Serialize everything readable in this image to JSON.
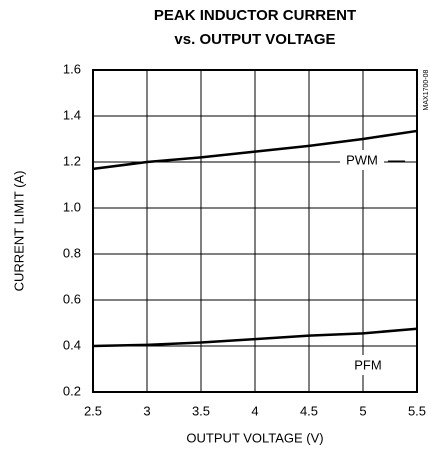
{
  "chart_data": {
    "type": "line",
    "title": "PEAK INDUCTOR CURRENT",
    "subtitle": "vs. OUTPUT VOLTAGE",
    "x_label": "OUTPUT VOLTAGE (V)",
    "y_label": "CURRENT LIMIT (A)",
    "annotation": "MAX1700-08",
    "x": [
      2.5,
      3,
      3.5,
      4,
      4.5,
      5,
      5.5
    ],
    "series": [
      {
        "name": "PWM",
        "color": "#000000",
        "values": [
          1.17,
          1.2,
          1.22,
          1.245,
          1.27,
          1.3,
          1.335
        ]
      },
      {
        "name": "PFM",
        "color": "#000000",
        "values": [
          0.4,
          0.405,
          0.415,
          0.43,
          0.445,
          0.455,
          0.475
        ]
      }
    ],
    "xlim": [
      2.5,
      5.5
    ],
    "xticks": [
      2.5,
      3,
      3.5,
      4,
      4.5,
      5,
      5.5
    ],
    "ylim": [
      0.2,
      1.6
    ],
    "yticks": [
      0.2,
      0.4,
      0.6,
      0.8,
      {
        "value": 1,
        "label": "1.0"
      },
      1.2,
      1.4,
      1.6
    ],
    "grid": true
  }
}
